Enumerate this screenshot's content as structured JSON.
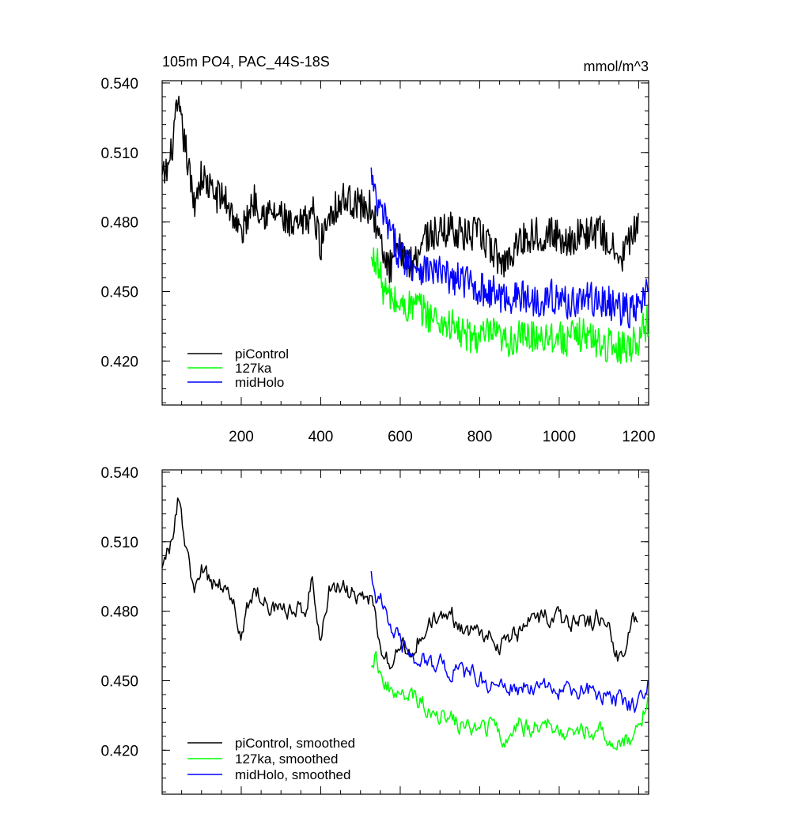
{
  "chart_data": [
    {
      "type": "line",
      "title": "105m PO4, PAC_44S-18S",
      "units": "mmol/m^3",
      "x_tick_labels": [
        "200",
        "400",
        "600",
        "800",
        "1000",
        "1200"
      ],
      "y_tick_labels": [
        "0.540",
        "0.510",
        "0.480",
        "0.450",
        "0.420"
      ],
      "xlim": [
        1,
        1225
      ],
      "ylim": [
        0.401,
        0.541
      ],
      "grid": false,
      "legend_position": "bottom-left",
      "series": [
        {
          "name": "piControl",
          "color": "#000000",
          "x_range": [
            1,
            1200
          ],
          "points": [
            [
              1,
              0.498
            ],
            [
              20,
              0.505
            ],
            [
              40,
              0.53
            ],
            [
              60,
              0.512
            ],
            [
              80,
              0.488
            ],
            [
              100,
              0.5
            ],
            [
              130,
              0.492
            ],
            [
              160,
              0.49
            ],
            [
              180,
              0.483
            ],
            [
              200,
              0.474
            ],
            [
              230,
              0.49
            ],
            [
              260,
              0.484
            ],
            [
              300,
              0.483
            ],
            [
              330,
              0.476
            ],
            [
              360,
              0.48
            ],
            [
              380,
              0.485
            ],
            [
              400,
              0.47
            ],
            [
              420,
              0.484
            ],
            [
              440,
              0.487
            ],
            [
              460,
              0.49
            ],
            [
              480,
              0.489
            ],
            [
              500,
              0.487
            ],
            [
              530,
              0.486
            ],
            [
              545,
              0.474
            ],
            [
              560,
              0.463
            ],
            [
              580,
              0.46
            ],
            [
              600,
              0.468
            ],
            [
              630,
              0.462
            ],
            [
              660,
              0.474
            ],
            [
              700,
              0.475
            ],
            [
              730,
              0.478
            ],
            [
              760,
              0.474
            ],
            [
              800,
              0.475
            ],
            [
              830,
              0.468
            ],
            [
              860,
              0.462
            ],
            [
              900,
              0.472
            ],
            [
              940,
              0.475
            ],
            [
              980,
              0.475
            ],
            [
              1020,
              0.472
            ],
            [
              1060,
              0.475
            ],
            [
              1100,
              0.476
            ],
            [
              1130,
              0.47
            ],
            [
              1150,
              0.462
            ],
            [
              1170,
              0.47
            ],
            [
              1200,
              0.478
            ]
          ]
        },
        {
          "name": "127ka",
          "color": "#00ff00",
          "x_range": [
            527,
            1225
          ],
          "points": [
            [
              527,
              0.462
            ],
            [
              540,
              0.465
            ],
            [
              555,
              0.452
            ],
            [
              570,
              0.448
            ],
            [
              590,
              0.445
            ],
            [
              610,
              0.443
            ],
            [
              640,
              0.444
            ],
            [
              670,
              0.44
            ],
            [
              700,
              0.437
            ],
            [
              730,
              0.435
            ],
            [
              760,
              0.431
            ],
            [
              800,
              0.43
            ],
            [
              830,
              0.432
            ],
            [
              860,
              0.428
            ],
            [
              900,
              0.43
            ],
            [
              940,
              0.431
            ],
            [
              980,
              0.431
            ],
            [
              1020,
              0.429
            ],
            [
              1060,
              0.432
            ],
            [
              1100,
              0.428
            ],
            [
              1140,
              0.426
            ],
            [
              1180,
              0.427
            ],
            [
              1200,
              0.43
            ],
            [
              1225,
              0.438
            ]
          ]
        },
        {
          "name": "midHolo",
          "color": "#0000ff",
          "x_range": [
            527,
            1225
          ],
          "points": [
            [
              527,
              0.5
            ],
            [
              540,
              0.487
            ],
            [
              560,
              0.482
            ],
            [
              580,
              0.473
            ],
            [
              600,
              0.466
            ],
            [
              630,
              0.462
            ],
            [
              660,
              0.46
            ],
            [
              700,
              0.458
            ],
            [
              730,
              0.455
            ],
            [
              760,
              0.455
            ],
            [
              800,
              0.451
            ],
            [
              830,
              0.45
            ],
            [
              860,
              0.447
            ],
            [
              900,
              0.448
            ],
            [
              940,
              0.446
            ],
            [
              980,
              0.448
            ],
            [
              1020,
              0.445
            ],
            [
              1060,
              0.447
            ],
            [
              1100,
              0.446
            ],
            [
              1140,
              0.444
            ],
            [
              1180,
              0.441
            ],
            [
              1200,
              0.443
            ],
            [
              1225,
              0.45
            ]
          ]
        }
      ]
    },
    {
      "type": "line",
      "x_tick_labels": [],
      "y_tick_labels": [
        "0.540",
        "0.510",
        "0.480",
        "0.450",
        "0.420"
      ],
      "xlim": [
        1,
        1225
      ],
      "ylim": [
        0.401,
        0.541
      ],
      "grid": false,
      "legend_position": "bottom-left",
      "series": [
        {
          "name": "piControl, smoothed",
          "color": "#000000",
          "x_range": [
            1,
            1200
          ],
          "points": [
            [
              1,
              0.502
            ],
            [
              20,
              0.506
            ],
            [
              40,
              0.528
            ],
            [
              60,
              0.508
            ],
            [
              80,
              0.488
            ],
            [
              100,
              0.497
            ],
            [
              130,
              0.492
            ],
            [
              160,
              0.491
            ],
            [
              180,
              0.483
            ],
            [
              200,
              0.47
            ],
            [
              230,
              0.49
            ],
            [
              260,
              0.484
            ],
            [
              300,
              0.482
            ],
            [
              330,
              0.478
            ],
            [
              360,
              0.482
            ],
            [
              380,
              0.495
            ],
            [
              400,
              0.467
            ],
            [
              420,
              0.49
            ],
            [
              440,
              0.49
            ],
            [
              460,
              0.489
            ],
            [
              480,
              0.487
            ],
            [
              500,
              0.486
            ],
            [
              530,
              0.484
            ],
            [
              545,
              0.47
            ],
            [
              560,
              0.46
            ],
            [
              580,
              0.455
            ],
            [
              600,
              0.466
            ],
            [
              630,
              0.462
            ],
            [
              660,
              0.473
            ],
            [
              700,
              0.476
            ],
            [
              730,
              0.478
            ],
            [
              760,
              0.472
            ],
            [
              800,
              0.473
            ],
            [
              830,
              0.468
            ],
            [
              860,
              0.466
            ],
            [
              900,
              0.47
            ],
            [
              940,
              0.478
            ],
            [
              980,
              0.476
            ],
            [
              1020,
              0.475
            ],
            [
              1060,
              0.475
            ],
            [
              1100,
              0.478
            ],
            [
              1130,
              0.47
            ],
            [
              1150,
              0.46
            ],
            [
              1170,
              0.468
            ],
            [
              1200,
              0.481
            ]
          ]
        },
        {
          "name": "127ka, smoothed",
          "color": "#00ff00",
          "x_range": [
            527,
            1225
          ],
          "points": [
            [
              527,
              0.459
            ],
            [
              540,
              0.462
            ],
            [
              555,
              0.45
            ],
            [
              570,
              0.447
            ],
            [
              590,
              0.443
            ],
            [
              610,
              0.442
            ],
            [
              640,
              0.443
            ],
            [
              670,
              0.438
            ],
            [
              700,
              0.436
            ],
            [
              730,
              0.433
            ],
            [
              760,
              0.43
            ],
            [
              800,
              0.428
            ],
            [
              830,
              0.43
            ],
            [
              860,
              0.426
            ],
            [
              900,
              0.43
            ],
            [
              940,
              0.43
            ],
            [
              980,
              0.43
            ],
            [
              1020,
              0.428
            ],
            [
              1060,
              0.43
            ],
            [
              1100,
              0.427
            ],
            [
              1140,
              0.425
            ],
            [
              1180,
              0.425
            ],
            [
              1200,
              0.427
            ],
            [
              1225,
              0.444
            ]
          ]
        },
        {
          "name": "midHolo, smoothed",
          "color": "#0000ff",
          "x_range": [
            527,
            1225
          ],
          "points": [
            [
              527,
              0.5
            ],
            [
              540,
              0.485
            ],
            [
              560,
              0.482
            ],
            [
              580,
              0.473
            ],
            [
              600,
              0.465
            ],
            [
              630,
              0.461
            ],
            [
              660,
              0.459
            ],
            [
              700,
              0.457
            ],
            [
              730,
              0.454
            ],
            [
              760,
              0.453
            ],
            [
              800,
              0.451
            ],
            [
              830,
              0.449
            ],
            [
              860,
              0.446
            ],
            [
              900,
              0.447
            ],
            [
              940,
              0.446
            ],
            [
              980,
              0.447
            ],
            [
              1020,
              0.444
            ],
            [
              1060,
              0.446
            ],
            [
              1100,
              0.445
            ],
            [
              1140,
              0.443
            ],
            [
              1180,
              0.44
            ],
            [
              1200,
              0.441
            ],
            [
              1225,
              0.452
            ]
          ]
        }
      ]
    }
  ]
}
